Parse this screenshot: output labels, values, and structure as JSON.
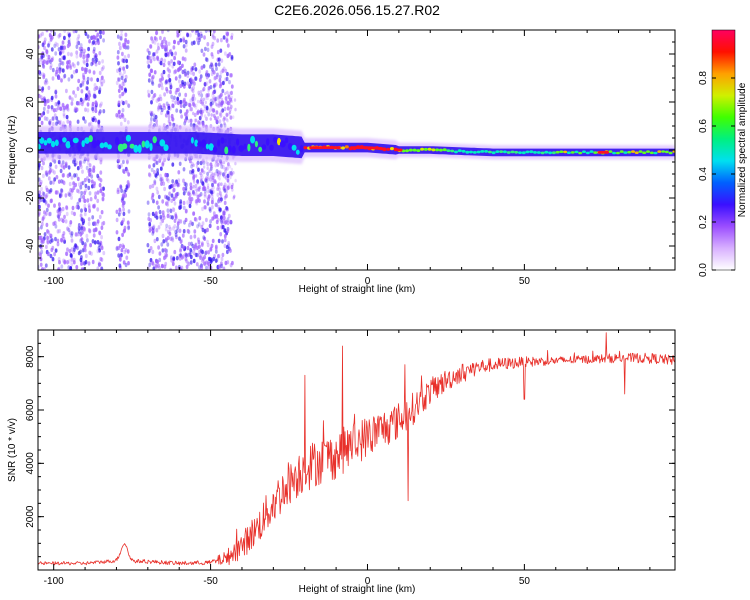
{
  "title": "C2E6.2026.056.15.27.R02",
  "colors": {
    "snr_line": "#e8302a",
    "spectrogram_sparse": "#a060ff",
    "spectrogram_core": "#3010f0",
    "background": "#ffffff"
  },
  "chart_data": [
    {
      "type": "heatmap",
      "name": "spectrogram",
      "xlabel": "Height of straight line (km)",
      "ylabel": "Frequency (Hz)",
      "xlim": [
        -105,
        98
      ],
      "ylim": [
        -50,
        50
      ],
      "xticks": [
        -100,
        -50,
        0,
        50
      ],
      "yticks": [
        -40,
        -20,
        0,
        20,
        40
      ],
      "tonal_line": {
        "x": [
          -105,
          -55,
          -40,
          -30,
          -20,
          -10,
          0,
          10,
          20,
          40,
          60,
          75,
          98
        ],
        "frequency": [
          3,
          3,
          2,
          2,
          1,
          1,
          1,
          0,
          0,
          -1,
          -1,
          -1,
          -1
        ]
      },
      "colorbar": {
        "label": "Normalized spectral amplitude",
        "range": [
          0,
          1
        ],
        "ticks": [
          0.0,
          0.2,
          0.4,
          0.6,
          0.8
        ],
        "tick_labels": [
          "0.0",
          "0.2",
          "0.4",
          "0.6",
          "0.8"
        ],
        "colormap": [
          "#ffffff",
          "#d8b0ff",
          "#9b4dff",
          "#3a10ff",
          "#0060ff",
          "#00e0f0",
          "#00f080",
          "#40ff00",
          "#d0f000",
          "#ffa000",
          "#ff1000",
          "#ff0060"
        ]
      }
    },
    {
      "type": "line",
      "name": "snr",
      "xlabel": "Height of straight line (km)",
      "ylabel": "SNR (10 * v/v)",
      "xlim": [
        -105,
        98
      ],
      "ylim": [
        0,
        9000
      ],
      "xticks": [
        -100,
        -50,
        0,
        50
      ],
      "yticks": [
        2000,
        4000,
        6000,
        8000
      ],
      "trend": {
        "x": [
          -105,
          -90,
          -80,
          -70,
          -60,
          -50,
          -45,
          -40,
          -35,
          -30,
          -25,
          -20,
          -15,
          -10,
          -5,
          0,
          5,
          10,
          15,
          20,
          25,
          30,
          35,
          40,
          45,
          50,
          60,
          70,
          80,
          90,
          98
        ],
        "y": [
          250,
          250,
          350,
          320,
          250,
          280,
          450,
          900,
          1600,
          2500,
          3300,
          3800,
          4100,
          4300,
          4700,
          5000,
          5300,
          5600,
          6100,
          6700,
          7100,
          7400,
          7600,
          7700,
          7750,
          7800,
          7850,
          7900,
          7950,
          7950,
          7850
        ]
      },
      "spikes": [
        {
          "x": -8,
          "y": 8400
        },
        {
          "x": -20,
          "y": 7300
        },
        {
          "x": 12,
          "y": 7700
        },
        {
          "x": 76,
          "y": 8900
        },
        {
          "x": 13,
          "y": 2600
        },
        {
          "x": 50,
          "y": 6400
        },
        {
          "x": 82,
          "y": 6600
        }
      ],
      "noise_amplitude": {
        "x": [
          -105,
          -50,
          -45,
          -40,
          -30,
          -20,
          -10,
          0,
          10,
          20,
          30,
          40,
          60,
          98
        ],
        "y": [
          60,
          80,
          300,
          500,
          800,
          900,
          900,
          800,
          700,
          500,
          350,
          250,
          150,
          200
        ]
      },
      "samples": 1000
    }
  ]
}
